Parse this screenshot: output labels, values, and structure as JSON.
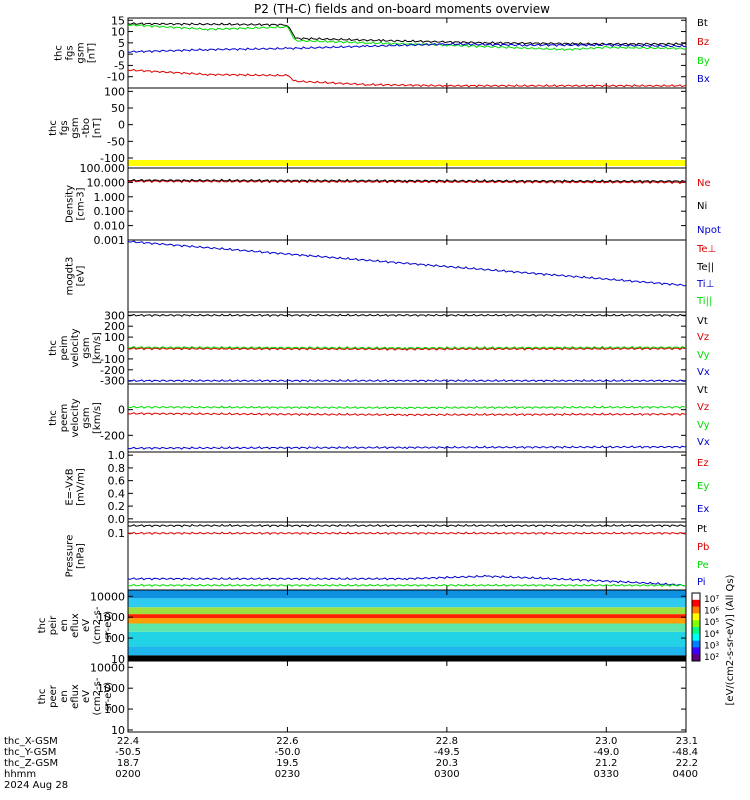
{
  "title": "P2 (TH-C) fields and on-board moments overview",
  "colors": {
    "black": "#000000",
    "red": "#dd0000",
    "green": "#00dd00",
    "blue": "#0000cc",
    "yellow": "#ffff00"
  },
  "chart_data": [
    {
      "type": "line",
      "ylabel_lines": [
        "thc",
        "fgs",
        "gsm",
        "[nT]"
      ],
      "ylim": [
        -15,
        16
      ],
      "yticks": [
        "15",
        "10",
        "5",
        "0",
        "-5",
        "-10"
      ],
      "legend": [
        {
          "label": "Bt",
          "color": "black"
        },
        {
          "label": "Bz",
          "color": "red"
        },
        {
          "label": "By",
          "color": "green"
        },
        {
          "label": "Bx",
          "color": "blue"
        }
      ],
      "series": [
        {
          "name": "Bt",
          "color": "black",
          "points": [
            [
              22.4,
              13.5
            ],
            [
              22.6,
              13
            ],
            [
              22.61,
              7
            ],
            [
              22.72,
              6
            ],
            [
              22.85,
              5
            ],
            [
              23.0,
              4.5
            ],
            [
              23.1,
              4.5
            ]
          ]
        },
        {
          "name": "By",
          "color": "green",
          "points": [
            [
              22.4,
              13
            ],
            [
              22.5,
              11
            ],
            [
              22.6,
              12
            ],
            [
              22.61,
              6
            ],
            [
              22.7,
              5
            ],
            [
              22.8,
              4
            ],
            [
              22.95,
              2
            ],
            [
              23.0,
              3
            ],
            [
              23.1,
              2.5
            ]
          ]
        },
        {
          "name": "Bx",
          "color": "blue",
          "points": [
            [
              22.4,
              1
            ],
            [
              22.5,
              2
            ],
            [
              22.6,
              2.5
            ],
            [
              22.7,
              3.5
            ],
            [
              22.8,
              4.5
            ],
            [
              22.9,
              4
            ],
            [
              23.0,
              4
            ],
            [
              23.1,
              3.5
            ]
          ]
        },
        {
          "name": "Bz",
          "color": "red",
          "points": [
            [
              22.4,
              -7
            ],
            [
              22.5,
              -9
            ],
            [
              22.6,
              -9.5
            ],
            [
              22.61,
              -12
            ],
            [
              22.7,
              -13.5
            ],
            [
              22.8,
              -14
            ],
            [
              23.1,
              -14
            ]
          ]
        }
      ]
    },
    {
      "type": "line",
      "ylabel_lines": [
        "thc",
        "fgs",
        "gsm",
        "-tbo",
        "[nT]"
      ],
      "ylim": [
        -130,
        110
      ],
      "yticks": [
        "100",
        "50",
        "0",
        "-50",
        "-100"
      ],
      "legend": [],
      "series": [],
      "band": {
        "color": "yellow"
      }
    },
    {
      "type": "line",
      "ylabel_lines": [
        "Density",
        "[cm-3]"
      ],
      "scale": "log",
      "ylim": [
        0.001,
        100
      ],
      "yticks": [
        "100.000",
        "10.000",
        "1.000",
        "0.100",
        "0.010",
        "0.001"
      ],
      "legend": [
        {
          "label": "Ne",
          "color": "red"
        },
        {
          "label": "Ni",
          "color": "black"
        },
        {
          "label": "Npot",
          "color": "blue"
        }
      ],
      "series": [
        {
          "name": "Ne",
          "color": "red",
          "points": [
            [
              22.4,
              12
            ],
            [
              22.75,
              11
            ],
            [
              23.1,
              10
            ]
          ]
        },
        {
          "name": "Ni",
          "color": "black",
          "points": [
            [
              22.4,
              14
            ],
            [
              22.75,
              13
            ],
            [
              23.1,
              12
            ]
          ]
        }
      ]
    },
    {
      "type": "line",
      "ylabel_lines": [
        "mogdt3",
        "[eV]"
      ],
      "legend": [
        {
          "label": "Te⊥",
          "color": "red"
        },
        {
          "label": "Te||",
          "color": "black"
        },
        {
          "label": "Ti⊥",
          "color": "blue"
        },
        {
          "label": "Ti||",
          "color": "green"
        }
      ],
      "ylim": [
        0,
        1
      ],
      "yticks": [],
      "series": [
        {
          "name": "Ti⊥",
          "color": "blue",
          "points": [
            [
              22.4,
              0.98
            ],
            [
              23.1,
              0.37
            ]
          ]
        }
      ]
    },
    {
      "type": "line",
      "ylabel_lines": [
        "thc",
        "peim",
        "velocity",
        "gsm",
        "[km/s]"
      ],
      "ylim": [
        -330,
        330
      ],
      "yticks": [
        "300",
        "200",
        "100",
        "0",
        "-100",
        "-200",
        "-300"
      ],
      "legend": [
        {
          "label": "Vt",
          "color": "black"
        },
        {
          "label": "Vz",
          "color": "red"
        },
        {
          "label": "Vy",
          "color": "green"
        },
        {
          "label": "Vx",
          "color": "blue"
        }
      ],
      "series": [
        {
          "name": "Vt",
          "color": "black",
          "points": [
            [
              22.4,
              300
            ],
            [
              23.1,
              300
            ]
          ]
        },
        {
          "name": "Vy",
          "color": "green",
          "points": [
            [
              22.4,
              5
            ],
            [
              22.75,
              0
            ],
            [
              23.1,
              5
            ]
          ]
        },
        {
          "name": "Vz",
          "color": "red",
          "points": [
            [
              22.4,
              -5
            ],
            [
              22.75,
              -10
            ],
            [
              23.1,
              -5
            ]
          ]
        },
        {
          "name": "Vx",
          "color": "blue",
          "points": [
            [
              22.4,
              -300
            ],
            [
              23.1,
              -300
            ]
          ]
        }
      ]
    },
    {
      "type": "line",
      "ylabel_lines": [
        "thc",
        "peem",
        "velocity",
        "gsm",
        "[km/s]"
      ],
      "ylim": [
        -330,
        200
      ],
      "yticks": [
        "0",
        "-200"
      ],
      "legend": [
        {
          "label": "Vt",
          "color": "black"
        },
        {
          "label": "Vz",
          "color": "red"
        },
        {
          "label": "Vy",
          "color": "green"
        },
        {
          "label": "Vx",
          "color": "blue"
        }
      ],
      "series": [
        {
          "name": "Vy",
          "color": "green",
          "points": [
            [
              22.4,
              20
            ],
            [
              22.75,
              15
            ],
            [
              23.1,
              20
            ]
          ]
        },
        {
          "name": "Vz",
          "color": "red",
          "points": [
            [
              22.4,
              -30
            ],
            [
              22.75,
              -40
            ],
            [
              23.1,
              -35
            ]
          ]
        },
        {
          "name": "Vx",
          "color": "blue",
          "points": [
            [
              22.4,
              -300
            ],
            [
              22.75,
              -295
            ],
            [
              23.1,
              -290
            ]
          ]
        }
      ]
    },
    {
      "type": "line",
      "ylabel_lines": [
        "E=-VxB",
        "[mV/m]"
      ],
      "ylim": [
        -0.05,
        1.05
      ],
      "yticks": [
        "1.0",
        "0.8",
        "0.6",
        "0.4",
        "0.2",
        "0.0"
      ],
      "legend": [
        {
          "label": "Ez",
          "color": "red"
        },
        {
          "label": "Ey",
          "color": "green"
        },
        {
          "label": "Ex",
          "color": "blue"
        }
      ],
      "series": []
    },
    {
      "type": "line",
      "ylabel_lines": [
        "Pressure",
        "[nPa]"
      ],
      "scale": "log",
      "ylim": [
        0.003,
        0.2
      ],
      "yticks": [
        "0.1"
      ],
      "legend": [
        {
          "label": "Pt",
          "color": "black"
        },
        {
          "label": "Pb",
          "color": "red"
        },
        {
          "label": "Pe",
          "color": "green"
        },
        {
          "label": "Pi",
          "color": "blue"
        }
      ],
      "series": [
        {
          "name": "Pt",
          "color": "black",
          "points": [
            [
              22.4,
              0.16
            ],
            [
              23.1,
              0.16
            ]
          ]
        },
        {
          "name": "Pb",
          "color": "red",
          "points": [
            [
              22.4,
              0.1
            ],
            [
              23.1,
              0.1
            ]
          ]
        },
        {
          "name": "Pi",
          "color": "blue",
          "points": [
            [
              22.4,
              0.006
            ],
            [
              22.75,
              0.006
            ],
            [
              22.85,
              0.007
            ],
            [
              23.1,
              0.004
            ]
          ]
        },
        {
          "name": "Pe",
          "color": "green",
          "points": [
            [
              22.4,
              0.004
            ],
            [
              23.1,
              0.004
            ]
          ]
        }
      ]
    },
    {
      "type": "heatmap",
      "ylabel_lines": [
        "thc",
        "peir",
        "en",
        "eflux",
        "eV",
        "(cm2-s-",
        "sr-eV)"
      ],
      "scale": "log",
      "ylim": [
        8,
        20000
      ],
      "yticks": [
        "10000",
        "1000",
        "100",
        "10"
      ],
      "bands": [
        {
          "from": 8,
          "to": 15,
          "color": "#000000"
        },
        {
          "from": 15,
          "to": 40,
          "color": "#1fb6ee"
        },
        {
          "from": 40,
          "to": 200,
          "color": "#22d3e6"
        },
        {
          "from": 200,
          "to": 500,
          "color": "#5ce6a8"
        },
        {
          "from": 500,
          "to": 900,
          "color": "#ffa000"
        },
        {
          "from": 900,
          "to": 1400,
          "color": "#ff2000"
        },
        {
          "from": 1400,
          "to": 3000,
          "color": "#9ee040"
        },
        {
          "from": 3000,
          "to": 8000,
          "color": "#2fcaf0"
        },
        {
          "from": 8000,
          "to": 20000,
          "color": "#1090e0"
        }
      ]
    },
    {
      "type": "heatmap",
      "ylabel_lines": [
        "thc",
        "peer",
        "en",
        "eflux",
        "eV",
        "(cm2-s-",
        "sr-eV)"
      ],
      "scale": "log",
      "ylim": [
        8,
        20000
      ],
      "yticks": [
        "10000",
        "1000",
        "100",
        "10"
      ],
      "bands": []
    }
  ],
  "colorbar": {
    "ticks": [
      "10⁷",
      "10⁶",
      "10⁵",
      "10⁴",
      "10³",
      "10²"
    ],
    "label": "[eV/(cm2-s-sr-eV)] (All Qs)"
  },
  "xaxis": {
    "ticks": [
      22.4,
      22.6,
      22.8,
      23.0,
      23.1
    ],
    "row_labels": [
      "thc_X-GSM",
      "thc_Y-GSM",
      "thc_Z-GSM",
      "hhmm",
      "2024 Aug 28"
    ],
    "rows": [
      [
        "22.4",
        "22.6",
        "22.8",
        "23.0",
        "23.1"
      ],
      [
        "-50.5",
        "-50.0",
        "-49.5",
        "-49.0",
        "-48.4"
      ],
      [
        "18.7",
        "19.5",
        "20.3",
        "21.2",
        "22.2"
      ],
      [
        "0200",
        "0230",
        "0300",
        "0330",
        "0400"
      ]
    ]
  }
}
